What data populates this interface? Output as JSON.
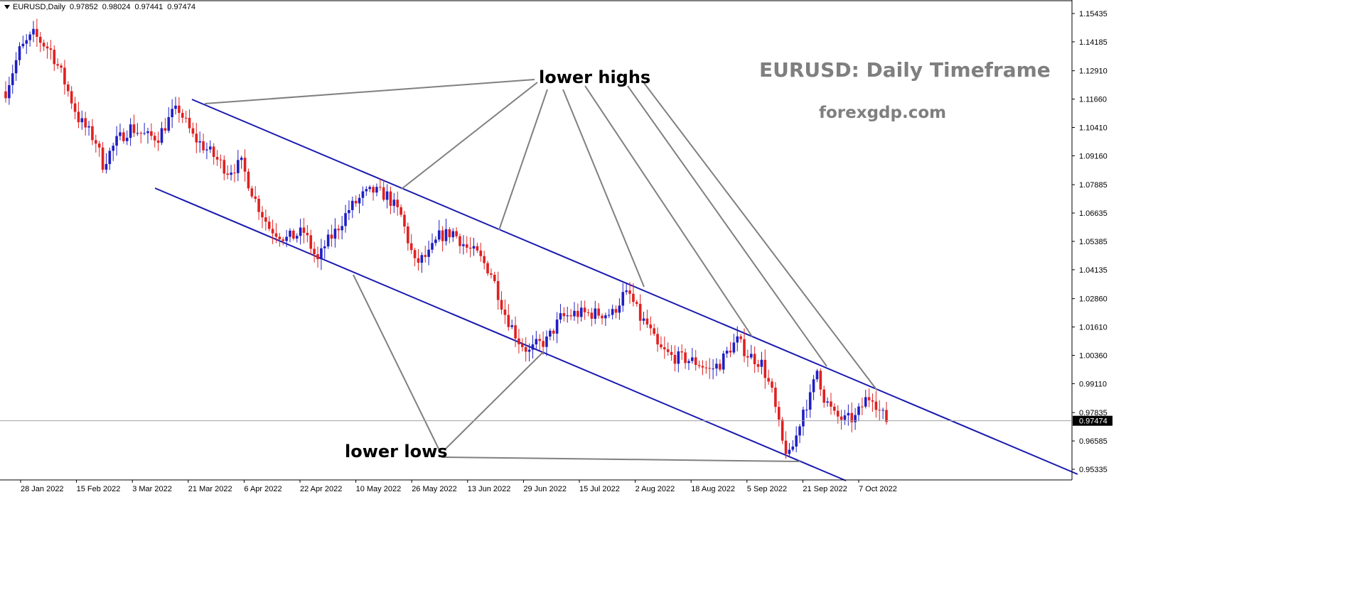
{
  "header": {
    "symbol": "EURUSD,Daily",
    "open": "0.97852",
    "high": "0.98024",
    "low": "0.97441",
    "close": "0.97474"
  },
  "annotations": {
    "title": "EURUSD: Daily Timeframe",
    "site": "forexgdp.com",
    "lower_highs": "lower highs",
    "lower_lows": "lower lows"
  },
  "colors": {
    "bull": "#1f1fc4",
    "bear": "#e02020",
    "channel": "#1a1ab0",
    "pointer": "#808080",
    "price_line": "#a0a0a0"
  },
  "chart_data": {
    "type": "candlestick",
    "price_label": "0.97474",
    "y_ticks": [
      "1.15435",
      "1.14185",
      "1.12910",
      "1.11660",
      "1.10410",
      "1.09160",
      "1.07885",
      "1.06635",
      "1.05385",
      "1.04135",
      "1.02860",
      "1.01610",
      "1.00360",
      "0.99110",
      "0.97835",
      "0.96585",
      "0.95335"
    ],
    "x_ticks": [
      "28 Jan 2022",
      "15 Feb 2022",
      "3 Mar 2022",
      "21 Mar 2022",
      "6 Apr 2022",
      "22 Apr 2022",
      "10 May 2022",
      "26 May 2022",
      "13 Jun 2022",
      "29 Jun 2022",
      "15 Jul 2022",
      "2 Aug 2022",
      "18 Aug 2022",
      "5 Sep 2022",
      "21 Sep 2022",
      "7 Oct 2022"
    ],
    "current_price": 0.97474,
    "channel_upper": [
      [
        1.1158,
        0.9405
      ]
    ],
    "anchors": [
      1.1159,
      1.0784,
      1.0583,
      1.0338,
      1.0107,
      0.9982,
      0.9875,
      1.0474,
      1.0016,
      0.9541
    ]
  }
}
